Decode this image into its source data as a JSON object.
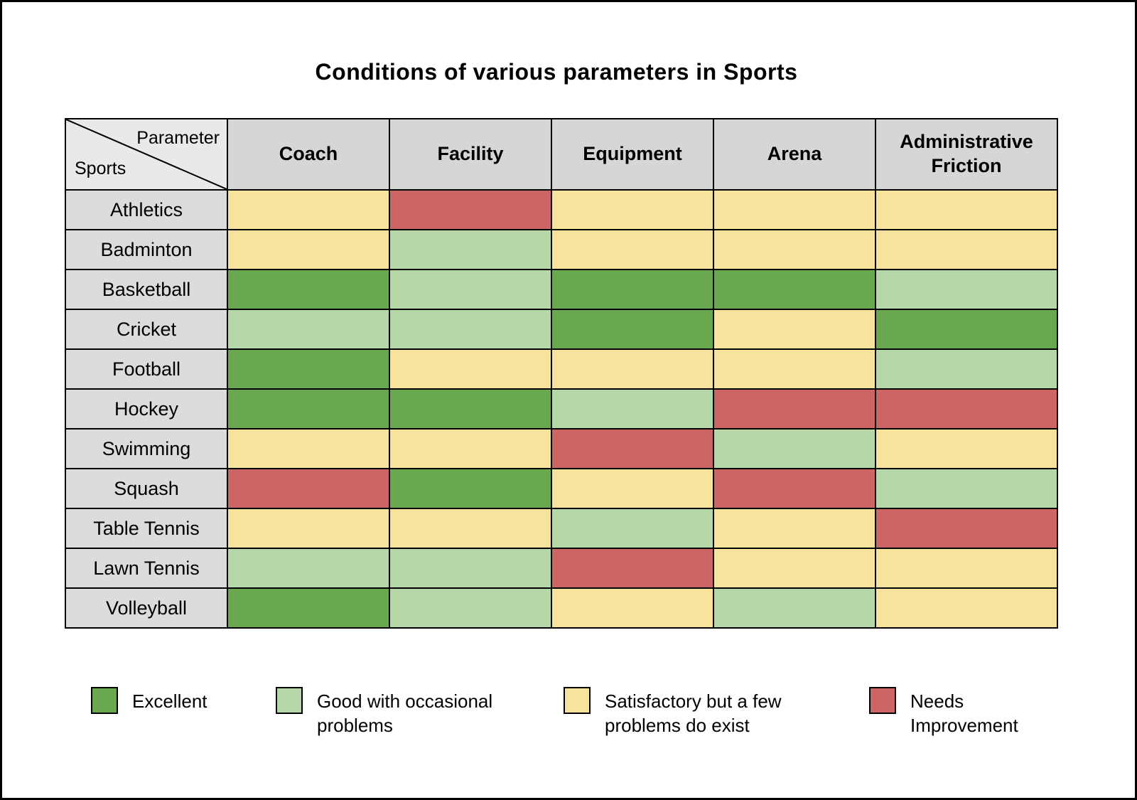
{
  "page": {
    "title": "Conditions of various parameters in Sports"
  },
  "colors": {
    "excellent": "#6aa84f",
    "good": "#b6d7a8",
    "satisfactory": "#f8e39c",
    "needs_improvement": "#cc6666"
  },
  "table": {
    "corner": {
      "top_label": "Parameter",
      "bottom_label": "Sports"
    },
    "columns": [
      "Coach",
      "Facility",
      "Equipment",
      "Arena",
      "Administrative Friction"
    ],
    "rows": [
      {
        "sport": "Athletics",
        "ratings": [
          "satisfactory",
          "needs_improvement",
          "satisfactory",
          "satisfactory",
          "satisfactory"
        ]
      },
      {
        "sport": "Badminton",
        "ratings": [
          "satisfactory",
          "good",
          "satisfactory",
          "satisfactory",
          "satisfactory"
        ]
      },
      {
        "sport": "Basketball",
        "ratings": [
          "excellent",
          "good",
          "excellent",
          "excellent",
          "good"
        ]
      },
      {
        "sport": "Cricket",
        "ratings": [
          "good",
          "good",
          "excellent",
          "satisfactory",
          "excellent"
        ]
      },
      {
        "sport": "Football",
        "ratings": [
          "excellent",
          "satisfactory",
          "satisfactory",
          "satisfactory",
          "good"
        ]
      },
      {
        "sport": "Hockey",
        "ratings": [
          "excellent",
          "excellent",
          "good",
          "needs_improvement",
          "needs_improvement"
        ]
      },
      {
        "sport": "Swimming",
        "ratings": [
          "satisfactory",
          "satisfactory",
          "needs_improvement",
          "good",
          "satisfactory"
        ]
      },
      {
        "sport": "Squash",
        "ratings": [
          "needs_improvement",
          "excellent",
          "satisfactory",
          "needs_improvement",
          "good"
        ]
      },
      {
        "sport": "Table Tennis",
        "ratings": [
          "satisfactory",
          "satisfactory",
          "good",
          "satisfactory",
          "needs_improvement"
        ]
      },
      {
        "sport": "Lawn Tennis",
        "ratings": [
          "good",
          "good",
          "needs_improvement",
          "satisfactory",
          "satisfactory"
        ]
      },
      {
        "sport": "Volleyball",
        "ratings": [
          "excellent",
          "good",
          "satisfactory",
          "good",
          "satisfactory"
        ]
      }
    ]
  },
  "legend": [
    {
      "key": "excellent",
      "label": "Excellent",
      "color": "#6aa84f"
    },
    {
      "key": "good",
      "label": "Good with occasional problems",
      "color": "#b6d7a8"
    },
    {
      "key": "satisfactory",
      "label": "Satisfactory but a few problems do exist",
      "color": "#f8e39c"
    },
    {
      "key": "needs_improvement",
      "label": "Needs Improvement",
      "color": "#cc6666"
    }
  ],
  "chart_data": {
    "type": "heatmap",
    "title": "Conditions of various parameters in Sports",
    "x_categories": [
      "Coach",
      "Facility",
      "Equipment",
      "Arena",
      "Administrative Friction"
    ],
    "y_categories": [
      "Athletics",
      "Badminton",
      "Basketball",
      "Cricket",
      "Football",
      "Hockey",
      "Swimming",
      "Squash",
      "Table Tennis",
      "Lawn Tennis",
      "Volleyball"
    ],
    "values": [
      [
        "satisfactory",
        "needs_improvement",
        "satisfactory",
        "satisfactory",
        "satisfactory"
      ],
      [
        "satisfactory",
        "good",
        "satisfactory",
        "satisfactory",
        "satisfactory"
      ],
      [
        "excellent",
        "good",
        "excellent",
        "excellent",
        "good"
      ],
      [
        "good",
        "good",
        "excellent",
        "satisfactory",
        "excellent"
      ],
      [
        "excellent",
        "satisfactory",
        "satisfactory",
        "satisfactory",
        "good"
      ],
      [
        "excellent",
        "excellent",
        "good",
        "needs_improvement",
        "needs_improvement"
      ],
      [
        "satisfactory",
        "satisfactory",
        "needs_improvement",
        "good",
        "satisfactory"
      ],
      [
        "needs_improvement",
        "excellent",
        "satisfactory",
        "needs_improvement",
        "good"
      ],
      [
        "satisfactory",
        "satisfactory",
        "good",
        "satisfactory",
        "needs_improvement"
      ],
      [
        "good",
        "good",
        "needs_improvement",
        "satisfactory",
        "satisfactory"
      ],
      [
        "excellent",
        "good",
        "satisfactory",
        "good",
        "satisfactory"
      ]
    ],
    "value_legend": {
      "excellent": "Excellent",
      "good": "Good with occasional problems",
      "satisfactory": "Satisfactory but a few problems do exist",
      "needs_improvement": "Needs Improvement"
    },
    "legend_position": "bottom",
    "grid": true
  }
}
